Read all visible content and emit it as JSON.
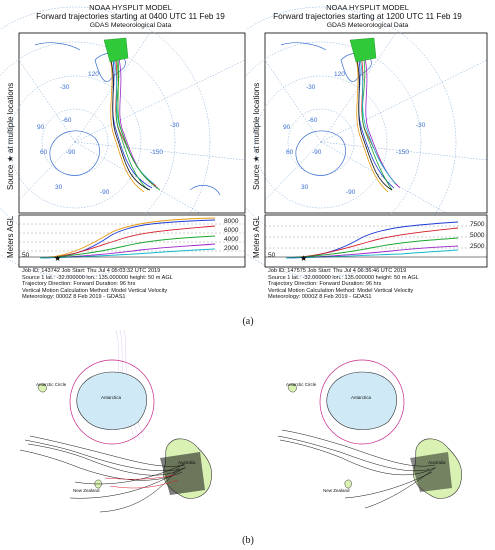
{
  "panels": [
    {
      "title1": "NOAA HYSPLIT MODEL",
      "title2": "Forward trajectories starting at 0400 UTC 11 Feb 19",
      "title3": "GDAS Meteorological Data",
      "source_label": "Source ★ at multiple locations",
      "meters_label": "Meters AGL",
      "height_ticks": [
        "8000",
        "6000",
        "4000",
        "2000"
      ],
      "base_tick": "50",
      "lat_labels": [
        "-30",
        "-60",
        "-90"
      ],
      "lon_labels": [
        "120",
        "90",
        "60",
        "30",
        "-30",
        "-90",
        "-150"
      ],
      "info": [
        "Job ID: 143742      Job Start: Thu Jul  4 05:03:32 UTC 2019",
        "Source 1      lat.: -32.000000    lon.: 135.000000    height: 50 m AGL",
        "Trajectory Direction: Forward       Duration: 96 hrs",
        "Vertical Motion Calculation Method:      Model Vertical Velocity",
        "Meteorology: 0000Z  8 Feb 2019 - GDAS1"
      ]
    },
    {
      "title1": "NOAA HYSPLIT MODEL",
      "title2": "Forward trajectories starting at 1200 UTC 11 Feb 19",
      "title3": "GDAS Meteorological Data",
      "source_label": "Source ★ at multiple locations",
      "meters_label": "Meters AGL",
      "height_ticks": [
        "7500",
        "5000",
        "2500"
      ],
      "base_tick": "50",
      "lat_labels": [
        "-30",
        "-60",
        "-90"
      ],
      "lon_labels": [
        "120",
        "90",
        "60",
        "30",
        "-30",
        "-90",
        "-150"
      ],
      "info": [
        "Job ID: 147575      Job Start: Thu Jul  4 06:36:46 UTC 2019",
        "Source 1      lat.: -32.000000    lon.: 135.000000    height: 50 m AGL",
        "Trajectory Direction: Forward       Duration: 96 hrs",
        "Vertical Motion Calculation Method:      Model Vertical Velocity",
        "Meteorology: 0000Z  8 Feb 2019 - GDAS1"
      ]
    }
  ],
  "captions": {
    "a": "(a)",
    "b": "(b)"
  },
  "bottom_maps": {
    "labels": {
      "antarctic_circle": "Antarctic Circle",
      "antarctica": "Antarctica",
      "australia": "Australia",
      "new_zealand": "New Zealand"
    }
  },
  "colors": {
    "land": "#d9f2b3",
    "antarctica": "#cfe9f7",
    "circle": "#c8288a",
    "track": "#111111"
  }
}
